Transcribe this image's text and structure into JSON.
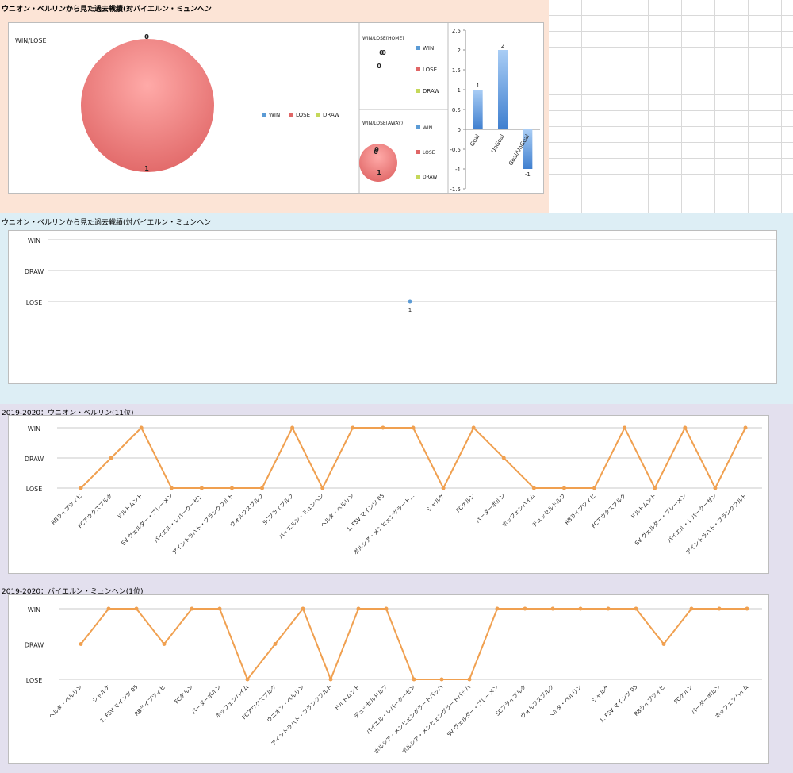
{
  "colors": {
    "top_bg": "#fce4d6",
    "mid_bg": "#ddeef5",
    "bottom_bg": "#e3e0ee",
    "line_color": "#f0a050",
    "lose_color": "#e06666",
    "win_color": "#5b9bd5",
    "draw_color": "#c5d85a",
    "bar_color": "#7fb0e6"
  },
  "top": {
    "title": "ウニオン・ベルリンから見た過去戦績(対バイエルン・ミュンヘン"
  },
  "middle": {
    "title": "ウニオン・ベルリンから見た過去戦績(対バイエルン・ミュンヘン"
  },
  "union_section": {
    "title": "2019-2020：ウニオン・ベルリン(11位)"
  },
  "bayern_section": {
    "title": "2019-2020：バイエルン・ミュンヘン(1位)"
  },
  "chart_data": [
    {
      "type": "pie",
      "title": "WIN/LOSE",
      "labels": [
        "WIN",
        "LOSE",
        "DRAW"
      ],
      "values": [
        0,
        1,
        0
      ],
      "data_labels": [
        "0",
        "1",
        "0"
      ],
      "legend": "right"
    },
    {
      "type": "pie",
      "title": "WIN/LOSE(HOME)",
      "labels": [
        "WIN",
        "LOSE",
        "DRAW"
      ],
      "values": [
        0,
        0,
        0
      ],
      "data_labels": [
        "0",
        "0",
        "0"
      ],
      "legend": "right"
    },
    {
      "type": "pie",
      "title": "WIN/LOSE(AWAY)",
      "labels": [
        "WIN",
        "LOSE",
        "DRAW"
      ],
      "values": [
        0,
        1,
        0
      ],
      "data_labels": [
        "0",
        "1",
        "0"
      ],
      "legend": "right"
    },
    {
      "type": "bar",
      "categories": [
        "Goal",
        "UnGoal",
        "Goal/UnGoal"
      ],
      "values": [
        1,
        2,
        -1
      ],
      "ylim": [
        -1.5,
        2.5
      ],
      "yticks": [
        "2.5",
        "2",
        "1.5",
        "1",
        "0.5",
        "0",
        "-0.5",
        "-1",
        "-1.5"
      ],
      "grid": false
    },
    {
      "type": "scatter",
      "y_categories": [
        "WIN",
        "DRAW",
        "LOSE"
      ],
      "points": [
        {
          "x": 1,
          "y": "LOSE",
          "label": "1"
        }
      ],
      "grid": true
    },
    {
      "type": "line",
      "y_categories": [
        "WIN",
        "DRAW",
        "LOSE"
      ],
      "categories": [
        "RBライプツィヒ",
        "FCアウクスブルク",
        "ドルトムント",
        "SV ヴェルダー・ブレーメン",
        "バイエル・レバークーゼン",
        "アイントラハト・フランクフルト",
        "ヴォルフスブルク",
        "SCフライブルク",
        "バイエルン・ミュンヘン",
        "ヘルタ・ベルリン",
        "1. FSV マインツ 05",
        "ボルシア・メンヒェングラート…",
        "シャルケ",
        "FCケルン",
        "パーダーボルン",
        "ホッフェンハイム",
        "デュッセルドルフ",
        "RBライプツィヒ",
        "FCアウクスブルク",
        "ドルトムント",
        "SV ヴェルダー・ブレーメン",
        "バイエル・レバークーゼン",
        "アイントラハト・フランクフルト"
      ],
      "values": [
        "LOSE",
        "DRAW",
        "WIN",
        "LOSE",
        "LOSE",
        "LOSE",
        "LOSE",
        "WIN",
        "LOSE",
        "WIN",
        "WIN",
        "WIN",
        "LOSE",
        "WIN",
        "DRAW",
        "LOSE",
        "LOSE",
        "LOSE",
        "WIN",
        "LOSE",
        "WIN",
        "LOSE",
        "WIN"
      ],
      "grid": true
    },
    {
      "type": "line",
      "y_categories": [
        "WIN",
        "DRAW",
        "LOSE"
      ],
      "categories": [
        "ヘルタ・ベルリン",
        "シャルケ",
        "1. FSV マインツ 05",
        "RBライプツィヒ",
        "FCケルン",
        "パーダーボルン",
        "ホッフェンハイム",
        "FCアウクスブルク",
        "ウニオン・ベルリン",
        "アイントラハト・フランクフルト",
        "ドルトムント",
        "デュッセルドルフ",
        "バイエル・レバークーゼン",
        "ボルシア・メンヒェングラートバッハ",
        "ボルシア・メンヒェングラートバッハ",
        "SV ヴェルダー・ブレーメン",
        "SCフライブルク",
        "ヴォルフスブルク",
        "ヘルタ・ベルリン",
        "シャルケ",
        "1. FSV マインツ 05",
        "RBライプツィヒ",
        "FCケルン",
        "パーダーボルン",
        "ホッフェンハイム"
      ],
      "values": [
        "DRAW",
        "WIN",
        "WIN",
        "DRAW",
        "WIN",
        "WIN",
        "LOSE",
        "DRAW",
        "WIN",
        "LOSE",
        "WIN",
        "WIN",
        "LOSE",
        "LOSE",
        "LOSE",
        "WIN",
        "WIN",
        "WIN",
        "WIN",
        "WIN",
        "WIN",
        "DRAW",
        "WIN",
        "WIN",
        "WIN"
      ],
      "grid": true
    }
  ]
}
